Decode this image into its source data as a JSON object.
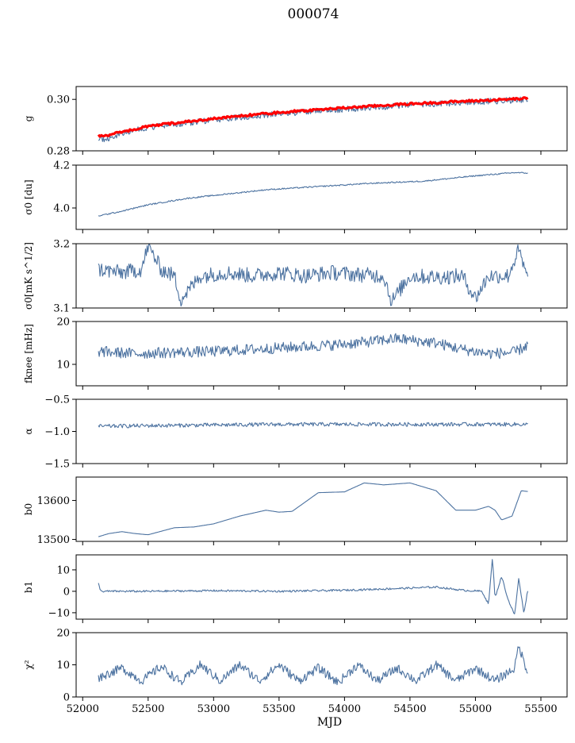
{
  "figure_title": "000074",
  "colors": {
    "series": "#4c72a0",
    "gain_model": "#ff0000",
    "axes": "#000000"
  },
  "chart_data": [
    {
      "type": "line",
      "ylabel": "g",
      "ylim": [
        0.28,
        0.305
      ],
      "yticks": [
        {
          "v": 0.28,
          "label": "0.28"
        },
        {
          "v": 0.3,
          "label": "0.30"
        }
      ],
      "xlim": [
        51950,
        55700
      ],
      "series": [
        {
          "kind": "gain_measured",
          "points": [
            [
              52120,
              0.2852
            ],
            [
              52150,
              0.284
            ],
            [
              52200,
              0.285
            ],
            [
              52300,
              0.2868
            ],
            [
              52400,
              0.288
            ],
            [
              52500,
              0.2892
            ],
            [
              52600,
              0.2897
            ],
            [
              52800,
              0.2909
            ],
            [
              53000,
              0.2921
            ],
            [
              53200,
              0.2931
            ],
            [
              53400,
              0.294
            ],
            [
              53600,
              0.2948
            ],
            [
              53800,
              0.2955
            ],
            [
              54000,
              0.2962
            ],
            [
              54200,
              0.2968
            ],
            [
              54400,
              0.2974
            ],
            [
              54600,
              0.298
            ],
            [
              54800,
              0.2985
            ],
            [
              55000,
              0.299
            ],
            [
              55200,
              0.2995
            ],
            [
              55400,
              0.3
            ]
          ]
        },
        {
          "kind": "gain_model",
          "points": [
            [
              52120,
              0.286
            ],
            [
              52150,
              0.2856
            ],
            [
              52300,
              0.2873
            ],
            [
              52500,
              0.2895
            ],
            [
              52700,
              0.2908
            ],
            [
              53000,
              0.2925
            ],
            [
              53300,
              0.294
            ],
            [
              53600,
              0.2953
            ],
            [
              54000,
              0.2967
            ],
            [
              54400,
              0.298
            ],
            [
              54800,
              0.299
            ],
            [
              55200,
              0.2999
            ],
            [
              55400,
              0.3004
            ]
          ]
        }
      ]
    },
    {
      "type": "line",
      "ylabel": "σ0 [du]",
      "ylim": [
        3.9,
        4.2
      ],
      "yticks": [
        {
          "v": 4.0,
          "label": "4.0"
        },
        {
          "v": 4.2,
          "label": "4.2"
        }
      ],
      "xlim": [
        51950,
        55700
      ],
      "series": [
        {
          "points": [
            [
              52120,
              3.963
            ],
            [
              52300,
              3.985
            ],
            [
              52500,
              4.015
            ],
            [
              52800,
              4.045
            ],
            [
              53100,
              4.065
            ],
            [
              53400,
              4.085
            ],
            [
              53800,
              4.1
            ],
            [
              54200,
              4.115
            ],
            [
              54600,
              4.125
            ],
            [
              55000,
              4.15
            ],
            [
              55300,
              4.165
            ],
            [
              55400,
              4.163
            ]
          ]
        }
      ]
    },
    {
      "type": "line",
      "ylabel": "σ0[mK s^1/2]",
      "ylim": [
        3.1,
        3.2
      ],
      "yticks": [
        {
          "v": 3.1,
          "label": "3.1"
        },
        {
          "v": 3.2,
          "label": "3.2"
        }
      ],
      "xlim": [
        51950,
        55700
      ],
      "series": [
        {
          "points": [
            [
              52120,
              3.16
            ],
            [
              52300,
              3.155
            ],
            [
              52450,
              3.16
            ],
            [
              52500,
              3.197
            ],
            [
              52600,
              3.16
            ],
            [
              52700,
              3.15
            ],
            [
              52750,
              3.113
            ],
            [
              52900,
              3.15
            ],
            [
              53100,
              3.155
            ],
            [
              53300,
              3.15
            ],
            [
              53500,
              3.155
            ],
            [
              53700,
              3.15
            ],
            [
              53900,
              3.155
            ],
            [
              54100,
              3.152
            ],
            [
              54300,
              3.15
            ],
            [
              54360,
              3.11
            ],
            [
              54500,
              3.15
            ],
            [
              54700,
              3.148
            ],
            [
              54900,
              3.15
            ],
            [
              55000,
              3.115
            ],
            [
              55100,
              3.15
            ],
            [
              55250,
              3.15
            ],
            [
              55330,
              3.19
            ],
            [
              55400,
              3.143
            ]
          ]
        }
      ]
    },
    {
      "type": "line",
      "ylabel": "fknee [mHz]",
      "ylim": [
        5,
        20
      ],
      "yticks": [
        {
          "v": 10,
          "label": "10"
        },
        {
          "v": 20,
          "label": "20"
        }
      ],
      "xlim": [
        51950,
        55700
      ],
      "series": [
        {
          "points": [
            [
              52120,
              13.0
            ],
            [
              52400,
              12.5
            ],
            [
              52700,
              12.8
            ],
            [
              53000,
              13.0
            ],
            [
              53300,
              13.5
            ],
            [
              53600,
              14.0
            ],
            [
              53900,
              14.5
            ],
            [
              54100,
              15.0
            ],
            [
              54400,
              16.0
            ],
            [
              54700,
              15.0
            ],
            [
              54900,
              13.5
            ],
            [
              55100,
              12.5
            ],
            [
              55300,
              12.8
            ],
            [
              55400,
              14.5
            ]
          ]
        }
      ]
    },
    {
      "type": "line",
      "ylabel": "α",
      "ylim": [
        -1.5,
        -0.5
      ],
      "yticks": [
        {
          "v": -1.5,
          "label": "−1.5"
        },
        {
          "v": -1.0,
          "label": "−1.0"
        },
        {
          "v": -0.5,
          "label": "−0.5"
        }
      ],
      "xlim": [
        51950,
        55700
      ],
      "series": [
        {
          "points": [
            [
              52120,
              -0.92
            ],
            [
              52500,
              -0.91
            ],
            [
              53000,
              -0.9
            ],
            [
              53500,
              -0.89
            ],
            [
              54000,
              -0.89
            ],
            [
              54500,
              -0.89
            ],
            [
              55000,
              -0.89
            ],
            [
              55400,
              -0.89
            ]
          ]
        }
      ]
    },
    {
      "type": "line",
      "ylabel": "b0",
      "ylim": [
        13495,
        13660
      ],
      "yticks": [
        {
          "v": 13500,
          "label": "13500"
        },
        {
          "v": 13600,
          "label": "13600"
        }
      ],
      "xlim": [
        51950,
        55700
      ],
      "series": [
        {
          "points": [
            [
              52120,
              13507
            ],
            [
              52200,
              13515
            ],
            [
              52300,
              13520
            ],
            [
              52400,
              13515
            ],
            [
              52500,
              13512
            ],
            [
              52700,
              13530
            ],
            [
              52850,
              13532
            ],
            [
              53000,
              13540
            ],
            [
              53200,
              13560
            ],
            [
              53400,
              13575
            ],
            [
              53500,
              13570
            ],
            [
              53600,
              13572
            ],
            [
              53800,
              13620
            ],
            [
              54000,
              13622
            ],
            [
              54150,
              13645
            ],
            [
              54300,
              13640
            ],
            [
              54500,
              13645
            ],
            [
              54700,
              13625
            ],
            [
              54850,
              13575
            ],
            [
              55000,
              13575
            ],
            [
              55100,
              13585
            ],
            [
              55150,
              13575
            ],
            [
              55200,
              13550
            ],
            [
              55280,
              13560
            ],
            [
              55350,
              13625
            ],
            [
              55400,
              13623
            ]
          ]
        }
      ]
    },
    {
      "type": "line",
      "ylabel": "b1",
      "ylim": [
        -13,
        17
      ],
      "yticks": [
        {
          "v": -10,
          "label": "−10"
        },
        {
          "v": 0,
          "label": "0"
        },
        {
          "v": 10,
          "label": "10"
        }
      ],
      "xlim": [
        51950,
        55700
      ],
      "series": [
        {
          "points": [
            [
              52120,
              3.5
            ],
            [
              52140,
              0.0
            ],
            [
              52500,
              0.0
            ],
            [
              53000,
              0.3
            ],
            [
              53500,
              0.0
            ],
            [
              54000,
              0.5
            ],
            [
              54500,
              1.5
            ],
            [
              54700,
              2.0
            ],
            [
              54900,
              0.5
            ],
            [
              55050,
              0.0
            ],
            [
              55100,
              -6.0
            ],
            [
              55130,
              15.5
            ],
            [
              55150,
              -3.0
            ],
            [
              55200,
              7.0
            ],
            [
              55250,
              -4.0
            ],
            [
              55300,
              -11.0
            ],
            [
              55330,
              6.0
            ],
            [
              55370,
              -10.0
            ],
            [
              55400,
              0.5
            ]
          ]
        }
      ]
    },
    {
      "type": "line",
      "ylabel": "χ²",
      "ylim": [
        0,
        20
      ],
      "yticks": [
        {
          "v": 0,
          "label": "0"
        },
        {
          "v": 10,
          "label": "10"
        },
        {
          "v": 20,
          "label": "20"
        }
      ],
      "xlim": [
        51950,
        55700
      ],
      "xlabel": "MJD",
      "xticks": [
        {
          "v": 52000,
          "label": "52000"
        },
        {
          "v": 52500,
          "label": "52500"
        },
        {
          "v": 53000,
          "label": "53000"
        },
        {
          "v": 53500,
          "label": "53500"
        },
        {
          "v": 54000,
          "label": "54000"
        },
        {
          "v": 54500,
          "label": "54500"
        },
        {
          "v": 55000,
          "label": "55000"
        },
        {
          "v": 55500,
          "label": "55500"
        }
      ],
      "series": [
        {
          "points": [
            [
              52120,
              6.0
            ],
            [
              52300,
              9.0
            ],
            [
              52450,
              5.0
            ],
            [
              52600,
              9.5
            ],
            [
              52750,
              4.5
            ],
            [
              52900,
              10.0
            ],
            [
              53050,
              5.0
            ],
            [
              53200,
              10.0
            ],
            [
              53350,
              5.0
            ],
            [
              53500,
              10.0
            ],
            [
              53650,
              5.0
            ],
            [
              53800,
              9.0
            ],
            [
              53950,
              4.5
            ],
            [
              54100,
              10.0
            ],
            [
              54250,
              5.0
            ],
            [
              54400,
              9.0
            ],
            [
              54550,
              5.0
            ],
            [
              54700,
              10.0
            ],
            [
              54850,
              5.0
            ],
            [
              55000,
              9.0
            ],
            [
              55150,
              5.0
            ],
            [
              55300,
              9.0
            ],
            [
              55330,
              16.0
            ],
            [
              55400,
              7.5
            ]
          ]
        }
      ]
    }
  ]
}
